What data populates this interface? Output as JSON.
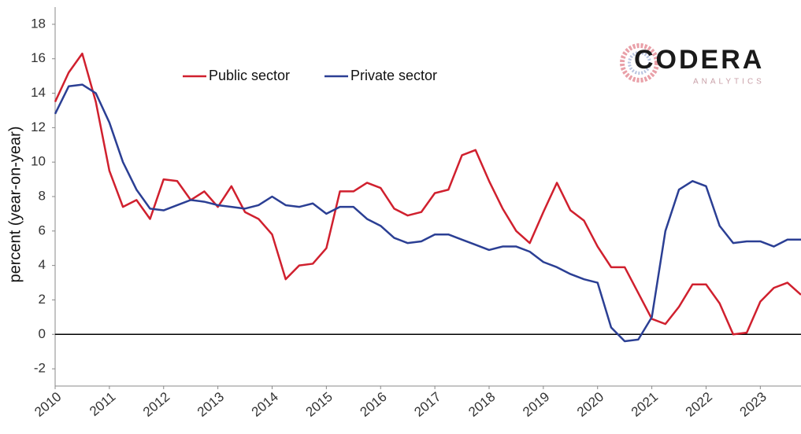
{
  "chart_data": {
    "type": "line",
    "y_label": "percent (year-on-year)",
    "logo": {
      "name": "CODERA",
      "tagline": "ANALYTICS"
    },
    "x": [
      2010,
      2010.25,
      2010.5,
      2010.75,
      2011,
      2011.25,
      2011.5,
      2011.75,
      2012,
      2012.25,
      2012.5,
      2012.75,
      2013,
      2013.25,
      2013.5,
      2013.75,
      2014,
      2014.25,
      2014.5,
      2014.75,
      2015,
      2015.25,
      2015.5,
      2015.75,
      2016,
      2016.25,
      2016.5,
      2016.75,
      2017,
      2017.25,
      2017.5,
      2017.75,
      2018,
      2018.25,
      2018.5,
      2018.75,
      2019,
      2019.25,
      2019.5,
      2019.75,
      2020,
      2020.25,
      2020.5,
      2020.75,
      2021,
      2021.25,
      2021.5,
      2021.75,
      2022,
      2022.25,
      2022.5,
      2022.75,
      2023,
      2023.25,
      2023.5,
      2023.75
    ],
    "series": [
      {
        "name": "Public sector",
        "color": "#d0202e",
        "values": [
          13.5,
          15.2,
          16.3,
          13.5,
          9.5,
          7.4,
          7.8,
          6.7,
          9.0,
          8.9,
          7.8,
          8.3,
          7.4,
          8.6,
          7.1,
          6.7,
          5.8,
          3.2,
          4.0,
          4.1,
          5.0,
          8.3,
          8.3,
          8.8,
          8.5,
          7.3,
          6.9,
          7.1,
          8.2,
          8.4,
          10.4,
          10.7,
          8.9,
          7.3,
          6.0,
          5.3,
          7.1,
          8.8,
          7.2,
          6.6,
          5.1,
          3.9,
          3.9,
          2.4,
          0.9,
          0.6,
          1.6,
          2.9,
          2.9,
          1.8,
          0.0,
          0.1,
          1.9,
          2.7,
          3.0,
          2.3
        ]
      },
      {
        "name": "Private sector",
        "color": "#2b3f94",
        "values": [
          12.8,
          14.4,
          14.5,
          14.0,
          12.3,
          10.0,
          8.4,
          7.3,
          7.2,
          7.5,
          7.8,
          7.7,
          7.5,
          7.4,
          7.3,
          7.5,
          8.0,
          7.5,
          7.4,
          7.6,
          7.0,
          7.4,
          7.4,
          6.7,
          6.3,
          5.6,
          5.3,
          5.4,
          5.8,
          5.8,
          5.5,
          5.2,
          4.9,
          5.1,
          5.1,
          4.8,
          4.2,
          3.9,
          3.5,
          3.2,
          3.0,
          0.4,
          -0.4,
          -0.3,
          1.0,
          6.0,
          8.4,
          8.9,
          8.6,
          6.3,
          5.3,
          5.4,
          5.4,
          5.1,
          5.5,
          5.5
        ]
      }
    ],
    "xlim": [
      2010,
      2023.75
    ],
    "xticks": [
      2010,
      2011,
      2012,
      2013,
      2014,
      2015,
      2016,
      2017,
      2018,
      2019,
      2020,
      2021,
      2022,
      2023
    ],
    "ylim": [
      -3,
      19
    ],
    "yticks": [
      -2,
      0,
      2,
      4,
      6,
      8,
      10,
      12,
      14,
      16,
      18
    ],
    "zero_line": true,
    "grid": false,
    "legend": "top-left"
  }
}
